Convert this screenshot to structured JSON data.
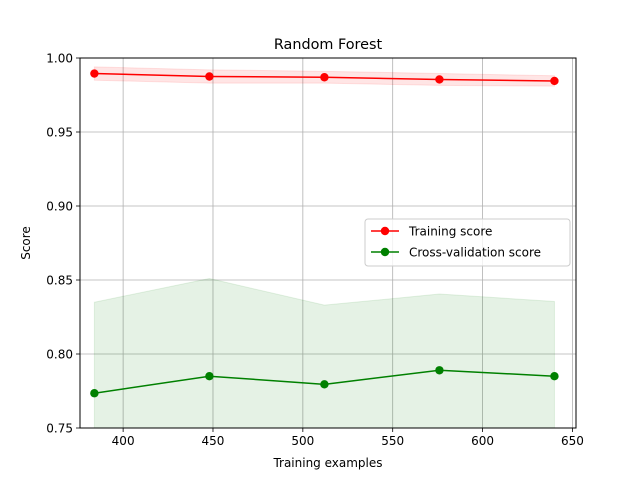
{
  "chart_data": {
    "type": "line",
    "title": "Random Forest",
    "xlabel": "Training examples",
    "ylabel": "Score",
    "xlim": [
      376,
      652
    ],
    "ylim": [
      0.75,
      1.0
    ],
    "xticks": [
      400,
      450,
      500,
      550,
      600,
      650
    ],
    "xtick_labels": [
      "400",
      "450",
      "500",
      "550",
      "600",
      "650"
    ],
    "yticks": [
      0.75,
      0.8,
      0.85,
      0.9,
      0.95,
      1.0
    ],
    "ytick_labels": [
      "0.75",
      "0.80",
      "0.85",
      "0.90",
      "0.95",
      "1.00"
    ],
    "grid": true,
    "legend_position": "center-right",
    "x": [
      384,
      448,
      512,
      576,
      640
    ],
    "series": [
      {
        "name": "Training score",
        "color": "#ff0000",
        "marker": "circle",
        "values": [
          0.9895,
          0.9875,
          0.987,
          0.9855,
          0.9845
        ],
        "band_upper": [
          0.994,
          0.992,
          0.991,
          0.9895,
          0.988
        ],
        "band_lower": [
          0.985,
          0.983,
          0.983,
          0.9815,
          0.981
        ]
      },
      {
        "name": "Cross-validation score",
        "color": "#008000",
        "marker": "circle",
        "values": [
          0.7735,
          0.785,
          0.7795,
          0.789,
          0.785
        ],
        "band_upper": [
          0.835,
          0.851,
          0.833,
          0.8405,
          0.8355
        ],
        "band_lower": [
          0.75,
          0.75,
          0.75,
          0.75,
          0.75
        ]
      }
    ]
  }
}
